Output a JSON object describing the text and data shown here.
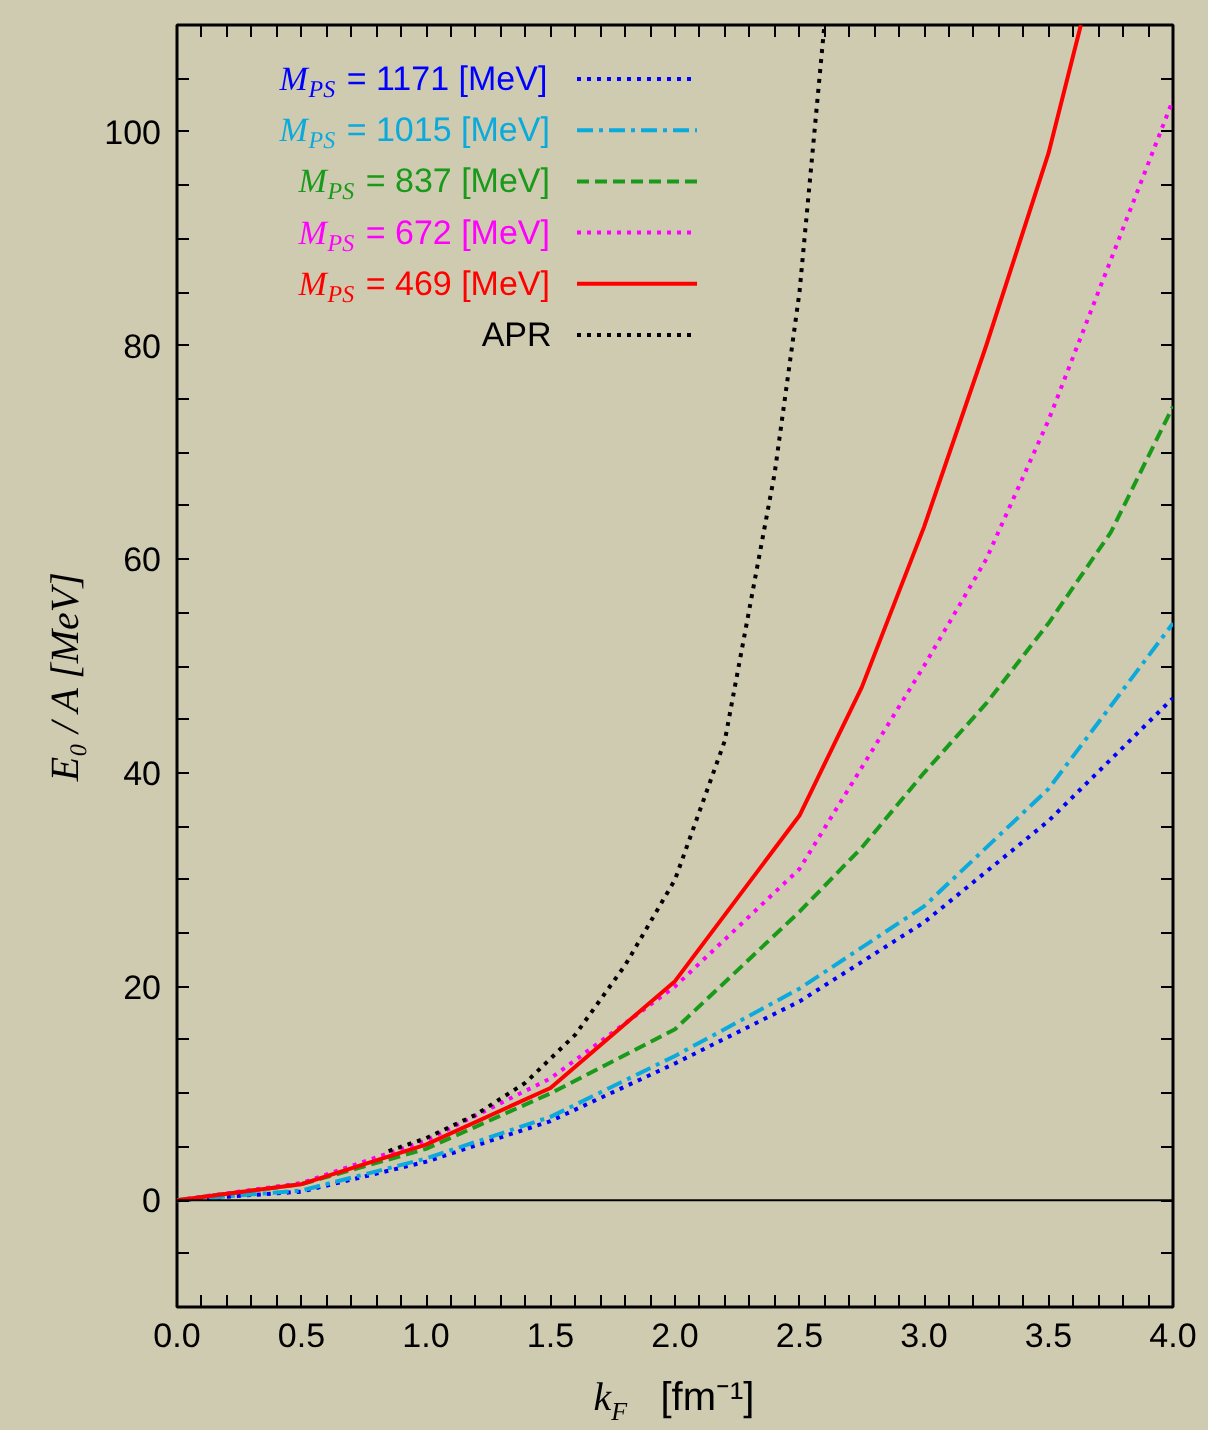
{
  "chart_data": {
    "type": "line",
    "xlabel": "k$_{F}$   [fm⁻¹]",
    "ylabel": "E₀ / A   [MeV]",
    "xlim": [
      0,
      4
    ],
    "ylim": [
      -10,
      110
    ],
    "xticks": [
      {
        "value": 0,
        "label": "0.0"
      },
      {
        "value": 0.1,
        "label": null
      },
      {
        "value": 0.2,
        "label": null
      },
      {
        "value": 0.3,
        "label": null
      },
      {
        "value": 0.4,
        "label": null
      },
      {
        "value": 0.5,
        "label": "0.5"
      },
      {
        "value": 0.6,
        "label": null
      },
      {
        "value": 0.7,
        "label": null
      },
      {
        "value": 0.8,
        "label": null
      },
      {
        "value": 0.9,
        "label": null
      },
      {
        "value": 1,
        "label": "1.0"
      },
      {
        "value": 1.1,
        "label": null
      },
      {
        "value": 1.2,
        "label": null
      },
      {
        "value": 1.3,
        "label": null
      },
      {
        "value": 1.4,
        "label": null
      },
      {
        "value": 1.5,
        "label": "1.5"
      },
      {
        "value": 1.6,
        "label": null
      },
      {
        "value": 1.7,
        "label": null
      },
      {
        "value": 1.8,
        "label": null
      },
      {
        "value": 1.9,
        "label": null
      },
      {
        "value": 2,
        "label": "2.0"
      },
      {
        "value": 2.1,
        "label": null
      },
      {
        "value": 2.2,
        "label": null
      },
      {
        "value": 2.3,
        "label": null
      },
      {
        "value": 2.4,
        "label": null
      },
      {
        "value": 2.5,
        "label": "2.5"
      },
      {
        "value": 2.6,
        "label": null
      },
      {
        "value": 2.7,
        "label": null
      },
      {
        "value": 2.8,
        "label": null
      },
      {
        "value": 2.9,
        "label": null
      },
      {
        "value": 3,
        "label": "3.0"
      },
      {
        "value": 3.1,
        "label": null
      },
      {
        "value": 3.2,
        "label": null
      },
      {
        "value": 3.3,
        "label": null
      },
      {
        "value": 3.4,
        "label": null
      },
      {
        "value": 3.5,
        "label": "3.5"
      },
      {
        "value": 3.6,
        "label": null
      },
      {
        "value": 3.7,
        "label": null
      },
      {
        "value": 3.8,
        "label": null
      },
      {
        "value": 3.9,
        "label": null
      },
      {
        "value": 4,
        "label": "4.0"
      }
    ],
    "yticks": [
      {
        "value": -10,
        "label": null
      },
      {
        "value": -5,
        "label": null
      },
      0,
      {
        "value": 5,
        "label": null
      },
      {
        "value": 10,
        "label": null
      },
      {
        "value": 15,
        "label": null
      },
      20,
      {
        "value": 25,
        "label": null
      },
      {
        "value": 30,
        "label": null
      },
      {
        "value": 35,
        "label": null
      },
      40,
      {
        "value": 45,
        "label": null
      },
      {
        "value": 50,
        "label": null
      },
      {
        "value": 55,
        "label": null
      },
      60,
      {
        "value": 65,
        "label": null
      },
      {
        "value": 70,
        "label": null
      },
      {
        "value": 75,
        "label": null
      },
      80,
      {
        "value": 85,
        "label": null
      },
      {
        "value": 90,
        "label": null
      },
      {
        "value": 95,
        "label": null
      },
      100,
      {
        "value": 105,
        "label": null
      },
      {
        "value": 110,
        "label": null
      }
    ],
    "grid": false,
    "legend": "top left",
    "ref_lines": [
      {
        "axis": "y",
        "value": 0,
        "color": "#000000"
      }
    ],
    "series": [
      {
        "name": "M$_{PS}$ = 1171 [MeV]",
        "color": "#0000ff",
        "line_style": "dotted",
        "x": [
          0,
          0.5,
          1,
          1.5,
          2,
          2.5,
          3,
          3.5,
          4
        ],
        "values": [
          0,
          0.8,
          3.6,
          7.4,
          12.8,
          18.6,
          26,
          35.5,
          47
        ]
      },
      {
        "name": "M$_{PS}$ = 1015 [MeV]",
        "color": "#0caadc",
        "line_style": "dashdot",
        "x": [
          0,
          0.5,
          1,
          1.5,
          2,
          2.5,
          3,
          3.5,
          4
        ],
        "values": [
          0,
          0.9,
          3.9,
          7.8,
          13.5,
          19.8,
          27.5,
          38.5,
          54
        ]
      },
      {
        "name": "M$_{PS}$ = 837 [MeV]",
        "color": "#1a9a1a",
        "line_style": "dashed",
        "x": [
          0,
          0.5,
          1,
          1.5,
          2,
          2.5,
          2.75,
          3,
          3.25,
          3.5,
          3.75,
          4
        ],
        "values": [
          0,
          1.5,
          4.8,
          10,
          16,
          27,
          33,
          40,
          46.5,
          54,
          62.5,
          74.3
        ]
      },
      {
        "name": "M$_{PS}$ = 672 [MeV]",
        "color": "#ff00ff",
        "line_style": "dotted",
        "x": [
          0,
          0.5,
          1,
          1.5,
          2,
          2.5,
          3,
          3.25,
          3.5,
          3.75,
          4
        ],
        "values": [
          0,
          1.6,
          5.6,
          11.4,
          20,
          31,
          50,
          60,
          73,
          88,
          103
        ]
      },
      {
        "name": "M$_{PS}$ = 469 [MeV]",
        "color": "#ff0000",
        "line_style": "solid",
        "x": [
          0,
          0.5,
          1,
          1.5,
          2,
          2.5,
          2.75,
          3,
          3.25,
          3.5,
          3.63
        ],
        "values": [
          0,
          1.5,
          5.2,
          10.5,
          20.5,
          36,
          48,
          63,
          80,
          98,
          110
        ]
      },
      {
        "name": "APR",
        "color": "#000000",
        "line_style": "dotted",
        "x": [
          0.85,
          1,
          1.2,
          1.4,
          1.6,
          1.8,
          2,
          2.2,
          2.4,
          2.5,
          2.6
        ],
        "values": [
          4.6,
          5.8,
          8,
          11,
          15.5,
          22,
          30,
          43,
          68,
          85,
          110
        ]
      }
    ]
  }
}
